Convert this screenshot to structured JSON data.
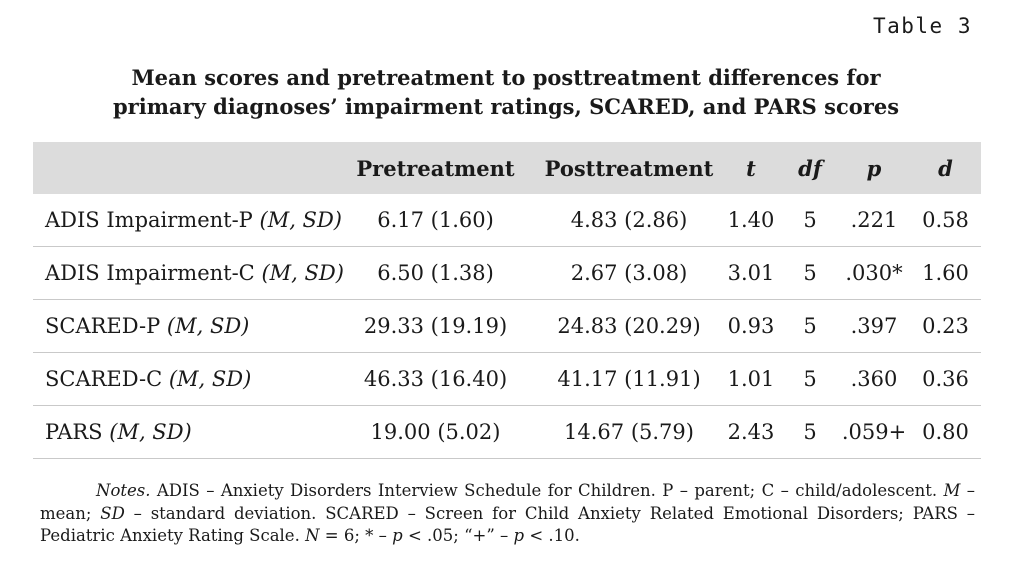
{
  "table_label": "Table 3",
  "title_line1": "Mean scores and pretreatment to posttreatment differences for",
  "title_line2": "primary diagnoses’ impairment ratings, SCARED, and PARS scores",
  "headers": {
    "label": "",
    "pre": "Pretreatment",
    "post": "Posttreatment",
    "t": "t",
    "df": "df",
    "p": "p",
    "d": "d"
  },
  "rows": [
    {
      "label": "ADIS Impairment-P",
      "stat": "(M, SD)",
      "pre": "6.17 (1.60)",
      "post": "4.83 (2.86)",
      "t": "1.40",
      "df": "5",
      "p": ".221",
      "d": "0.58"
    },
    {
      "label": "ADIS Impairment-C",
      "stat": "(M, SD)",
      "pre": "6.50 (1.38)",
      "post": "2.67 (3.08)",
      "t": "3.01",
      "df": "5",
      "p": ".030*",
      "d": "1.60"
    },
    {
      "label": "SCARED-P",
      "stat": "(M, SD)",
      "pre": "29.33 (19.19)",
      "post": "24.83 (20.29)",
      "t": "0.93",
      "df": "5",
      "p": ".397",
      "d": "0.23"
    },
    {
      "label": "SCARED-C",
      "stat": "(M, SD)",
      "pre": "46.33 (16.40)",
      "post": "41.17 (11.91)",
      "t": "1.01",
      "df": "5",
      "p": ".360",
      "d": "0.36"
    },
    {
      "label": "PARS",
      "stat": "(M, SD)",
      "pre": "19.00 (5.02)",
      "post": "14.67 (5.79)",
      "t": "2.43",
      "df": "5",
      "p": ".059+",
      "d": "0.80"
    }
  ],
  "notes": {
    "notes_label": "Notes.",
    "line1": "ADIS – Anxiety Disorders Interview Schedule for Children. P – parent; C – child/adolescent.",
    "m_sym": "M",
    "m_def": "– mean;",
    "sd_sym": "SD",
    "sd_def": "– standard deviation. SCARED – Screen for Child Anxiety Related Emotional Disorders;",
    "pars_def": "PARS – Pediatric Anxiety Rating Scale.",
    "n_sym": "N",
    "tail": "= 6; * –",
    "p1": "p",
    "p1_val": "< .05; “+” –",
    "p2": "p",
    "p2_val": "< .10."
  }
}
